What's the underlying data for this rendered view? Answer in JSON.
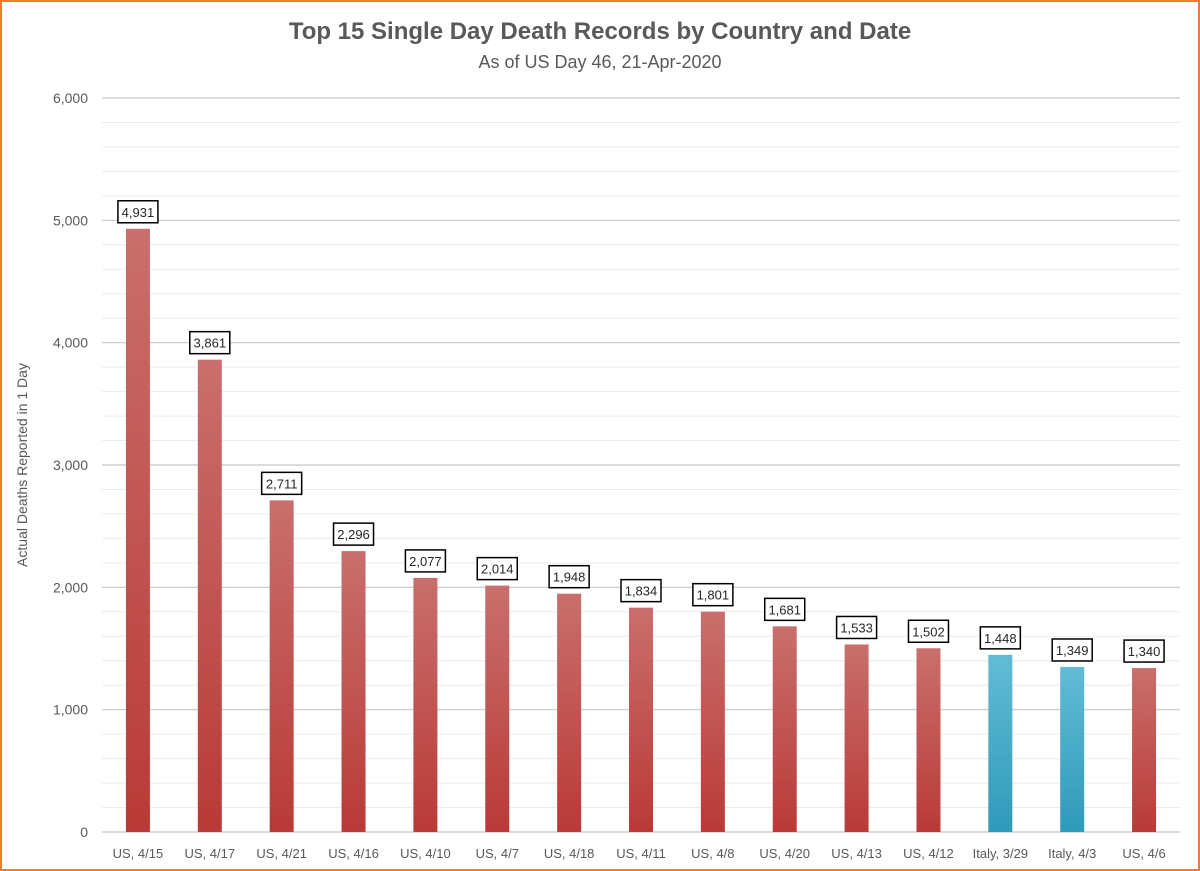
{
  "chart_data": {
    "type": "bar",
    "title": "Top 15 Single Day Death Records by Country and Date",
    "subtitle": "As of US Day 46, 21-Apr-2020",
    "xlabel": "",
    "ylabel": "Actual Deaths Reported in 1 Day",
    "ylim": [
      0,
      6000
    ],
    "y_ticks": [
      0,
      1000,
      2000,
      3000,
      4000,
      5000,
      6000
    ],
    "y_tick_labels": [
      "0",
      "1,000",
      "2,000",
      "3,000",
      "4,000",
      "5,000",
      "6,000"
    ],
    "grid": true,
    "categories": [
      "US, 4/15",
      "US, 4/17",
      "US, 4/21",
      "US, 4/16",
      "US, 4/10",
      "US, 4/7",
      "US, 4/18",
      "US, 4/11",
      "US, 4/8",
      "US, 4/20",
      "US, 4/13",
      "US, 4/12",
      "Italy, 3/29",
      "Italy, 4/3",
      "US, 4/6"
    ],
    "values": [
      4931,
      3861,
      2711,
      2296,
      2077,
      2014,
      1948,
      1834,
      1801,
      1681,
      1533,
      1502,
      1448,
      1349,
      1340
    ],
    "data_labels": [
      "4,931",
      "3,861",
      "2,711",
      "2,296",
      "2,077",
      "2,014",
      "1,948",
      "1,834",
      "1,801",
      "1,681",
      "1,533",
      "1,502",
      "1,448",
      "1,349",
      "1,340"
    ],
    "country": [
      "US",
      "US",
      "US",
      "US",
      "US",
      "US",
      "US",
      "US",
      "US",
      "US",
      "US",
      "US",
      "Italy",
      "Italy",
      "US"
    ],
    "colors": {
      "US": "#c0504d",
      "Italy": "#4bacc6"
    }
  }
}
